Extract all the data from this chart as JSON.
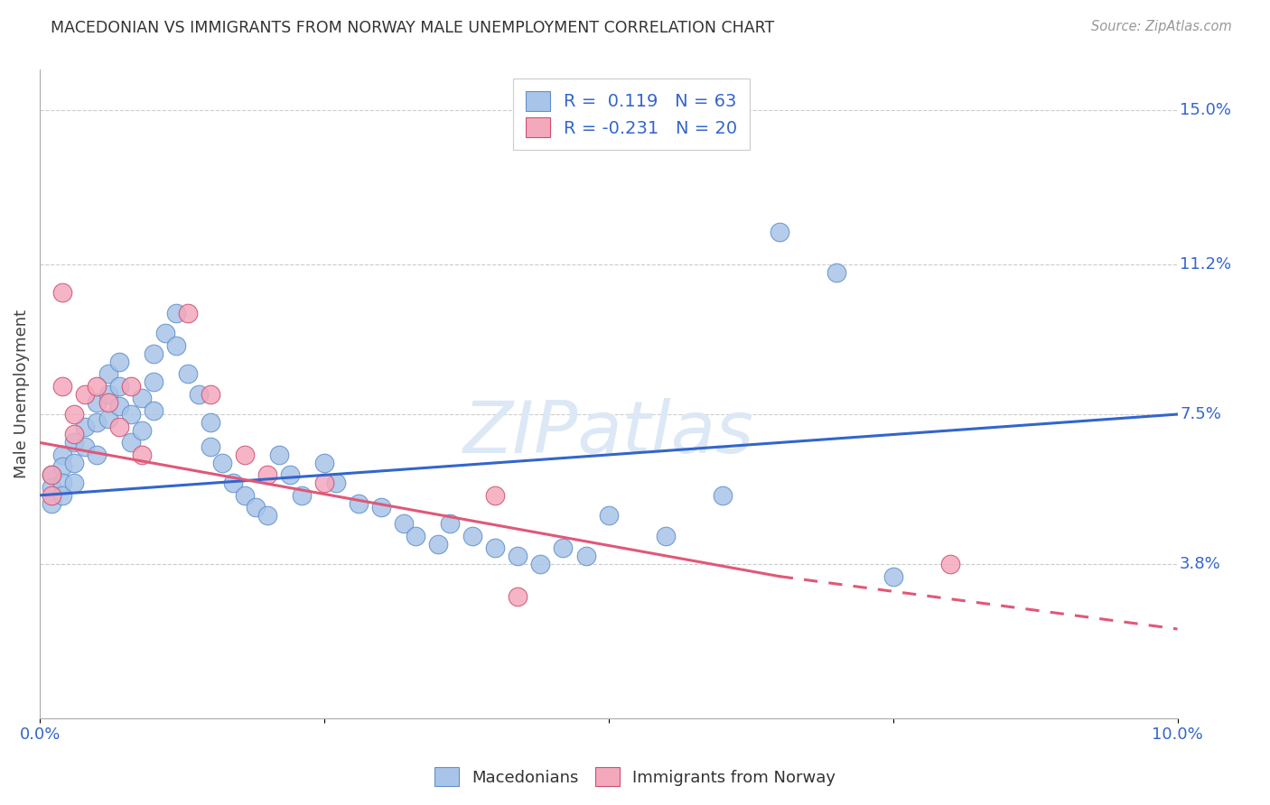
{
  "title": "MACEDONIAN VS IMMIGRANTS FROM NORWAY MALE UNEMPLOYMENT CORRELATION CHART",
  "source": "Source: ZipAtlas.com",
  "ylabel": "Male Unemployment",
  "ytick_labels": [
    "15.0%",
    "11.2%",
    "7.5%",
    "3.8%"
  ],
  "ytick_values": [
    0.15,
    0.112,
    0.075,
    0.038
  ],
  "xlim": [
    0.0,
    0.1
  ],
  "ylim": [
    0.0,
    0.16
  ],
  "macedonian_color": "#a8c4e8",
  "norway_color": "#f4a8bc",
  "macedonian_line_color": "#3366cc",
  "norway_line_color": "#e05878",
  "background_color": "#ffffff",
  "mac_x": [
    0.001,
    0.001,
    0.001,
    0.002,
    0.002,
    0.002,
    0.002,
    0.003,
    0.003,
    0.003,
    0.004,
    0.004,
    0.005,
    0.005,
    0.005,
    0.006,
    0.006,
    0.006,
    0.007,
    0.007,
    0.007,
    0.008,
    0.008,
    0.009,
    0.009,
    0.01,
    0.01,
    0.01,
    0.011,
    0.012,
    0.012,
    0.013,
    0.014,
    0.015,
    0.015,
    0.016,
    0.017,
    0.018,
    0.019,
    0.02,
    0.021,
    0.022,
    0.023,
    0.025,
    0.026,
    0.028,
    0.03,
    0.032,
    0.033,
    0.035,
    0.036,
    0.038,
    0.04,
    0.042,
    0.044,
    0.046,
    0.048,
    0.05,
    0.055,
    0.06,
    0.065,
    0.07,
    0.075
  ],
  "mac_y": [
    0.06,
    0.057,
    0.053,
    0.065,
    0.062,
    0.058,
    0.055,
    0.068,
    0.063,
    0.058,
    0.072,
    0.067,
    0.078,
    0.073,
    0.065,
    0.085,
    0.08,
    0.074,
    0.088,
    0.082,
    0.077,
    0.075,
    0.068,
    0.079,
    0.071,
    0.09,
    0.083,
    0.076,
    0.095,
    0.1,
    0.092,
    0.085,
    0.08,
    0.073,
    0.067,
    0.063,
    0.058,
    0.055,
    0.052,
    0.05,
    0.065,
    0.06,
    0.055,
    0.063,
    0.058,
    0.053,
    0.052,
    0.048,
    0.045,
    0.043,
    0.048,
    0.045,
    0.042,
    0.04,
    0.038,
    0.042,
    0.04,
    0.05,
    0.045,
    0.055,
    0.12,
    0.11,
    0.035
  ],
  "nor_x": [
    0.001,
    0.001,
    0.002,
    0.002,
    0.003,
    0.003,
    0.004,
    0.005,
    0.006,
    0.007,
    0.008,
    0.009,
    0.013,
    0.015,
    0.018,
    0.02,
    0.025,
    0.04,
    0.042,
    0.08
  ],
  "nor_y": [
    0.06,
    0.055,
    0.105,
    0.082,
    0.075,
    0.07,
    0.08,
    0.082,
    0.078,
    0.072,
    0.082,
    0.065,
    0.1,
    0.08,
    0.065,
    0.06,
    0.058,
    0.055,
    0.03,
    0.038
  ],
  "blue_line": [
    0.0,
    0.1,
    0.055,
    0.075
  ],
  "pink_line_solid": [
    0.0,
    0.065,
    0.068,
    0.035
  ],
  "pink_line_dash": [
    0.065,
    0.1,
    0.035,
    0.022
  ]
}
